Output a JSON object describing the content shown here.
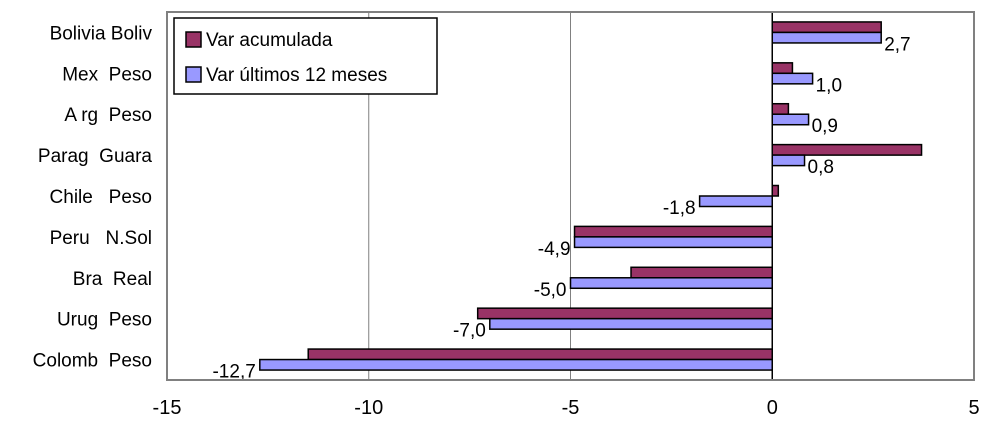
{
  "chart_data": {
    "type": "bar",
    "orientation": "horizontal",
    "title": "",
    "xlabel": "",
    "ylabel": "",
    "xlim": [
      -15,
      5
    ],
    "x_ticks": [
      -15,
      -10,
      -5,
      0,
      5
    ],
    "x_tick_labels": [
      "-15",
      "-10",
      "-5",
      "0",
      "5"
    ],
    "grid": "vertical",
    "legend_position": "top-left",
    "categories": [
      "Bolivia Boliv",
      "Mex  Peso",
      "A rg  Peso",
      "Parag  Guara",
      "Chile   Peso",
      "Peru   N.Sol",
      "Bra  Real",
      "Urug  Peso",
      "Colomb  Peso"
    ],
    "series": [
      {
        "name": "Var acumulada",
        "color": "#993366",
        "values": [
          2.7,
          0.5,
          0.4,
          3.7,
          0.15,
          -4.9,
          -3.5,
          -7.3,
          -11.5
        ]
      },
      {
        "name": "Var últimos 12 meses",
        "color": "#9999ff",
        "values": [
          2.7,
          1.0,
          0.9,
          0.8,
          -1.8,
          -4.9,
          -5.0,
          -7.0,
          -12.7
        ]
      }
    ],
    "data_labels": [
      "2,7",
      "1,0",
      "0,9",
      "0,8",
      "-1,8",
      "-4,9",
      "-5,0",
      "-7,0",
      "-12,7"
    ]
  }
}
